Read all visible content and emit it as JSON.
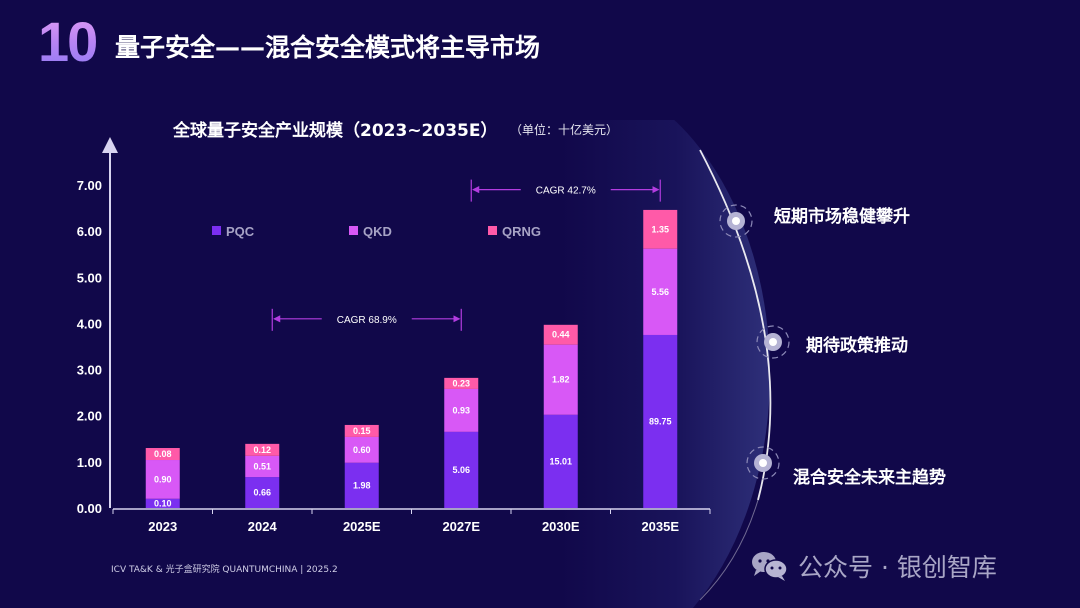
{
  "slide": {
    "number": "10",
    "title": "量子安全——混合安全模式将主导市场",
    "source": "ICV TA&K & 光子盒研究院 QUANTUMCHINA | 2025.2"
  },
  "chart_data": {
    "type": "bar",
    "stacked": true,
    "title": "全球量子安全产业规模（2023~2035E）",
    "unit": "（单位：十亿美元）",
    "xlabel": "",
    "ylabel": "",
    "ylim": [
      0,
      7
    ],
    "yticks": [
      "0.00",
      "1.00",
      "2.00",
      "3.00",
      "4.00",
      "5.00",
      "6.00",
      "7.00"
    ],
    "grid": false,
    "legend_position": "top-inside",
    "categories": [
      "2023",
      "2024",
      "2025E",
      "2027E",
      "2030E",
      "2035E"
    ],
    "series": [
      {
        "name": "PQC",
        "color": "#7b2ff0",
        "labels": [
          "0.10",
          "0.66",
          "1.98",
          "5.06",
          "15.01",
          "89.75"
        ],
        "plotted": [
          0.2,
          0.67,
          0.98,
          1.65,
          2.02,
          3.75
        ]
      },
      {
        "name": "QKD",
        "color": "#d858f6",
        "labels": [
          "0.90",
          "0.51",
          "0.60",
          "0.93",
          "1.82",
          "5.56"
        ],
        "plotted": [
          0.84,
          0.46,
          0.56,
          0.93,
          1.52,
          1.87
        ]
      },
      {
        "name": "QRNG",
        "color": "#ff5aa8",
        "labels": [
          "0.08",
          "0.12",
          "0.15",
          "0.23",
          "0.44",
          "1.35"
        ],
        "plotted": [
          0.26,
          0.26,
          0.26,
          0.24,
          0.43,
          0.84
        ]
      }
    ],
    "annotations": [
      {
        "text": "CAGR 68.9%",
        "from": "2024",
        "to": "2027E",
        "y": 4.1
      },
      {
        "text": "CAGR 42.7%",
        "from": "2027E",
        "to": "2035E",
        "y": 6.9
      }
    ]
  },
  "points": [
    {
      "text": "短期市场稳健攀升"
    },
    {
      "text": "期待政策推动"
    },
    {
      "text": "混合安全未来主趋势"
    }
  ],
  "watermark": {
    "text": "公众号 · 银创智库",
    "icon": "wechat-icon"
  }
}
